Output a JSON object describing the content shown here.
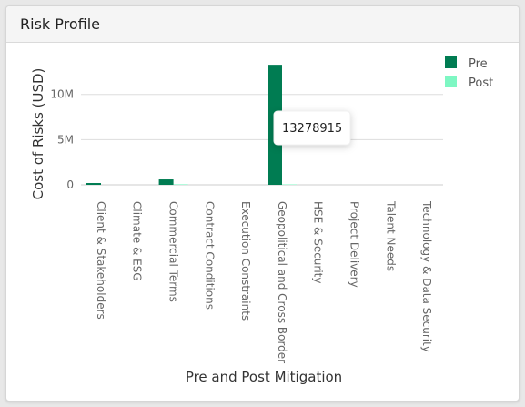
{
  "card": {
    "title": "Risk Profile"
  },
  "tooltip": {
    "text": "13278915"
  },
  "colors": {
    "pre": "#007c52",
    "post": "#7ef7c3",
    "grid": "#dddddd"
  },
  "chart_data": {
    "type": "bar",
    "title": "",
    "xlabel": "Pre and Post Mitigation",
    "ylabel": "Cost of Risks (USD)",
    "ylim": [
      0,
      14500000
    ],
    "yticks": [
      {
        "value": 0,
        "label": "0"
      },
      {
        "value": 5000000,
        "label": "5M"
      },
      {
        "value": 10000000,
        "label": "10M"
      }
    ],
    "grid": true,
    "legend_position": "top-right",
    "categories": [
      "Client & Stakeholders",
      "Climate & ESG",
      "Commercial Terms",
      "Contract Conditions",
      "Execution Constraints",
      "Geopolitical and Cross Border",
      "HSE & Security",
      "Project Delivery",
      "Talent Needs",
      "Technology & Data Security"
    ],
    "series": [
      {
        "name": "Pre",
        "values": [
          200000,
          0,
          600000,
          0,
          0,
          13278915,
          0,
          0,
          0,
          0
        ]
      },
      {
        "name": "Post",
        "values": [
          0,
          0,
          60000,
          0,
          0,
          50000,
          0,
          0,
          0,
          0
        ]
      }
    ]
  }
}
